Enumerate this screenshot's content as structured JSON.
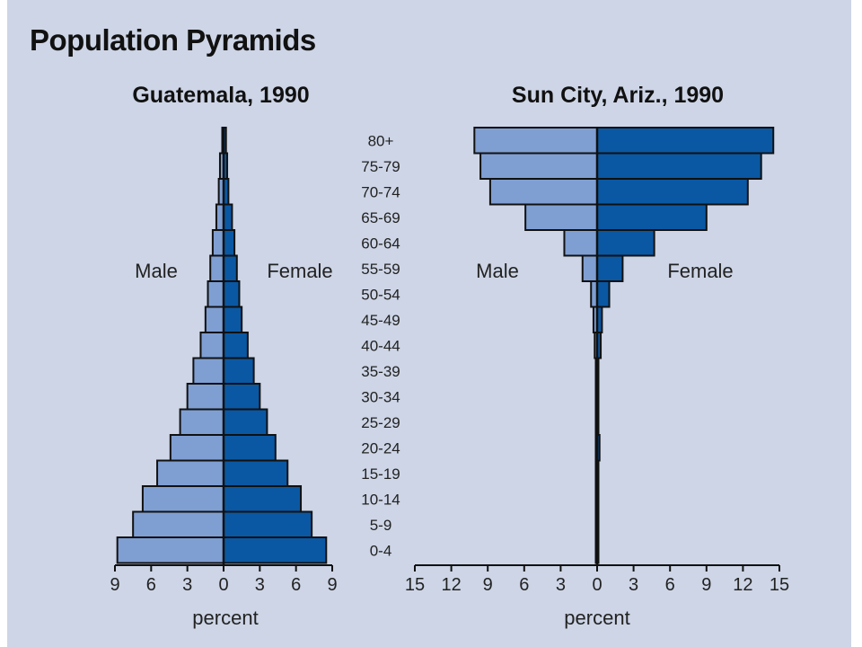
{
  "title": "Population Pyramids",
  "colors": {
    "background": "#cdd5e6",
    "male": "#7f9fd3",
    "female": "#0a58a3",
    "outline": "#111111"
  },
  "chart_data": [
    {
      "type": "bar",
      "subtype": "population-pyramid",
      "title": "Guatemala, 1990",
      "xlabel": "percent",
      "xlim": [
        -9,
        9
      ],
      "x_ticks": [
        "9",
        "6",
        "3",
        "0",
        "3",
        "6",
        "9"
      ],
      "sex_labels": {
        "male": "Male",
        "female": "Female"
      },
      "categories": [
        "0-4",
        "5-9",
        "10-14",
        "15-19",
        "20-24",
        "25-29",
        "30-34",
        "35-39",
        "40-44",
        "45-49",
        "50-54",
        "55-59",
        "60-64",
        "65-69",
        "70-74",
        "75-79",
        "80+"
      ],
      "series": [
        {
          "name": "Male",
          "values": [
            8.8,
            7.5,
            6.7,
            5.5,
            4.4,
            3.6,
            3.0,
            2.5,
            1.9,
            1.5,
            1.3,
            1.1,
            0.9,
            0.6,
            0.4,
            0.3,
            0.1
          ]
        },
        {
          "name": "Female",
          "values": [
            8.5,
            7.3,
            6.4,
            5.3,
            4.3,
            3.6,
            3.0,
            2.5,
            2.0,
            1.5,
            1.3,
            1.1,
            0.9,
            0.7,
            0.4,
            0.3,
            0.2
          ]
        }
      ]
    },
    {
      "type": "bar",
      "subtype": "population-pyramid",
      "title": "Sun City, Ariz., 1990",
      "xlabel": "percent",
      "xlim": [
        -15,
        15
      ],
      "x_ticks": [
        "15",
        "12",
        "9",
        "6",
        "3",
        "0",
        "3",
        "6",
        "9",
        "12",
        "15"
      ],
      "sex_labels": {
        "male": "Male",
        "female": "Female"
      },
      "categories": [
        "0-4",
        "5-9",
        "10-14",
        "15-19",
        "20-24",
        "25-29",
        "30-34",
        "35-39",
        "40-44",
        "45-49",
        "50-54",
        "55-59",
        "60-64",
        "65-69",
        "70-74",
        "75-79",
        "80+"
      ],
      "age_labels": [
        "80+",
        "75-79",
        "70-74",
        "65-69",
        "60-64",
        "55-59",
        "50-54",
        "45-49",
        "40-44",
        "35-39",
        "30-34",
        "25-29",
        "20-24",
        "15-19",
        "10-14",
        "5-9",
        "0-4"
      ],
      "series": [
        {
          "name": "Male",
          "values": [
            0.05,
            0.05,
            0.05,
            0.05,
            0.1,
            0.05,
            0.1,
            0.1,
            0.2,
            0.3,
            0.5,
            1.2,
            2.7,
            5.9,
            8.8,
            9.6,
            10.1
          ]
        },
        {
          "name": "Female",
          "values": [
            0.05,
            0.05,
            0.05,
            0.05,
            0.2,
            0.1,
            0.1,
            0.1,
            0.3,
            0.4,
            1.0,
            2.1,
            4.7,
            9.0,
            12.4,
            13.5,
            14.5
          ]
        }
      ]
    }
  ]
}
